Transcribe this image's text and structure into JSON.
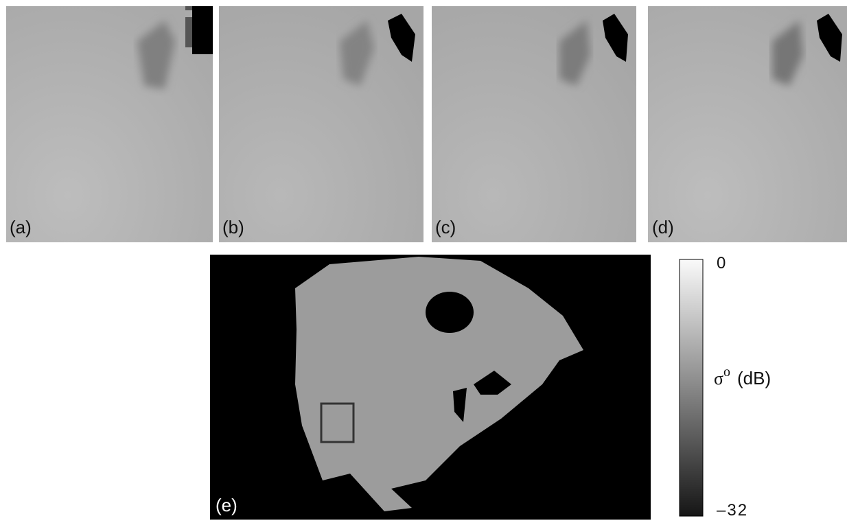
{
  "panels": [
    {
      "label": "(a)"
    },
    {
      "label": "(b)"
    },
    {
      "label": "(c)"
    },
    {
      "label": "(d)"
    }
  ],
  "map": {
    "label": "(e)"
  },
  "colorbar": {
    "symbol": "σ",
    "superscript": "o",
    "unit": "(dB)",
    "range": [
      -32,
      0
    ],
    "ticks": [
      0,
      -32
    ]
  }
}
